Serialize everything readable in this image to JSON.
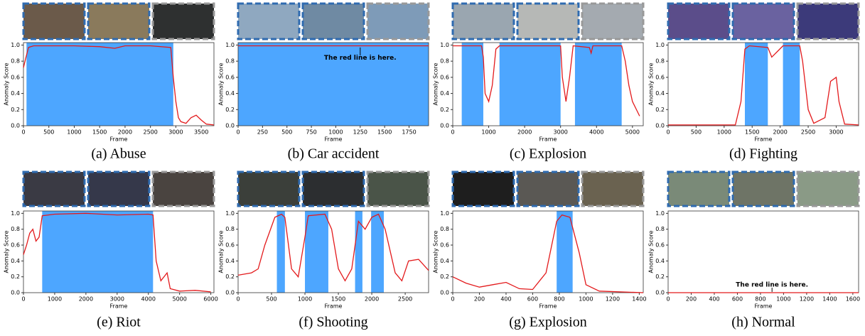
{
  "chart_data": [
    {
      "type": "line",
      "caption": "(a) Abuse",
      "xlabel": "Frame",
      "ylabel": "Anomaly Score",
      "color": "#e31a1c",
      "shade_color": "#4da6ff",
      "xlim": [
        0,
        3750
      ],
      "xticks": [
        0,
        500,
        1000,
        1500,
        2000,
        2500,
        3000,
        3500
      ],
      "ylim": [
        0,
        1.03
      ],
      "yticks": [
        {
          "value": 0,
          "label": "0.0"
        },
        0.2,
        0.4,
        0.6,
        0.8,
        {
          "value": 1,
          "label": "1.0"
        }
      ],
      "shaded": [
        [
          60,
          2950
        ]
      ],
      "x": [
        0,
        50,
        100,
        200,
        500,
        1000,
        1500,
        1800,
        2000,
        2500,
        2900,
        2950,
        3000,
        3050,
        3100,
        3200,
        3300,
        3400,
        3500,
        3600,
        3750
      ],
      "values": [
        0.72,
        0.85,
        0.97,
        0.99,
        0.99,
        0.99,
        0.98,
        0.96,
        0.99,
        0.99,
        0.97,
        0.6,
        0.3,
        0.1,
        0.05,
        0.03,
        0.1,
        0.13,
        0.07,
        0.02,
        0.01
      ]
    },
    {
      "type": "line",
      "caption": "(b) Car accident",
      "xlabel": "Frame",
      "ylabel": "Anomaly Score",
      "color": "#e31a1c",
      "shade_color": "#4da6ff",
      "xlim": [
        0,
        1950
      ],
      "xticks": [
        0,
        250,
        500,
        750,
        1000,
        1250,
        1500,
        1750
      ],
      "ylim": [
        0,
        1.03
      ],
      "yticks": [
        {
          "value": 0,
          "label": "0.0"
        },
        0.2,
        0.4,
        0.6,
        0.8,
        {
          "value": 1,
          "label": "1.0"
        }
      ],
      "shaded": [
        [
          0,
          1950
        ]
      ],
      "x": [
        0,
        500,
        1000,
        1500,
        1950
      ],
      "values": [
        0.99,
        0.99,
        0.99,
        0.99,
        0.99
      ],
      "annotation": {
        "text": "The red line is here.",
        "x": 1250
      }
    },
    {
      "type": "line",
      "caption": "(c) Explosion",
      "xlabel": "Frame",
      "ylabel": "Anomaly Score",
      "color": "#e31a1c",
      "shade_color": "#4da6ff",
      "xlim": [
        0,
        5300
      ],
      "xticks": [
        0,
        1000,
        2000,
        3000,
        4000,
        5000
      ],
      "ylim": [
        0,
        1.03
      ],
      "yticks": [
        {
          "value": 0,
          "label": "0.0"
        },
        0.2,
        0.4,
        0.6,
        0.8,
        {
          "value": 1,
          "label": "1.0"
        }
      ],
      "shaded": [
        [
          250,
          850
        ],
        [
          1300,
          3000
        ],
        [
          3400,
          4700
        ]
      ],
      "x": [
        0,
        800,
        850,
        900,
        1000,
        1100,
        1200,
        1300,
        3000,
        3050,
        3150,
        3250,
        3350,
        3800,
        3850,
        3900,
        4700,
        4800,
        4900,
        5000,
        5200
      ],
      "values": [
        0.99,
        0.99,
        0.85,
        0.4,
        0.3,
        0.5,
        0.95,
        0.99,
        0.99,
        0.6,
        0.3,
        0.6,
        0.99,
        0.97,
        0.9,
        0.99,
        0.99,
        0.8,
        0.5,
        0.3,
        0.12
      ]
    },
    {
      "type": "line",
      "caption": "(d) Fighting",
      "xlabel": "Frame",
      "ylabel": "Anomaly Score",
      "color": "#e31a1c",
      "shade_color": "#4da6ff",
      "xlim": [
        0,
        3400
      ],
      "xticks": [
        0,
        500,
        1000,
        1500,
        2000,
        2500,
        3000
      ],
      "ylim": [
        0,
        1.03
      ],
      "yticks": [
        {
          "value": 0,
          "label": "0.0"
        },
        0.2,
        0.4,
        0.6,
        0.8,
        {
          "value": 1,
          "label": "1.0"
        }
      ],
      "shaded": [
        [
          1370,
          1780
        ],
        [
          2050,
          2350
        ]
      ],
      "x": [
        0,
        1200,
        1300,
        1370,
        1450,
        1780,
        1850,
        1950,
        2050,
        2350,
        2400,
        2500,
        2600,
        2800,
        2900,
        3000,
        3050,
        3150,
        3400
      ],
      "values": [
        0.01,
        0.01,
        0.3,
        0.95,
        0.99,
        0.97,
        0.85,
        0.92,
        0.99,
        0.99,
        0.8,
        0.2,
        0.03,
        0.1,
        0.55,
        0.6,
        0.3,
        0.02,
        0.01
      ]
    },
    {
      "type": "line",
      "caption": "(e) Riot",
      "xlabel": "Frame",
      "ylabel": "Anomaly Score",
      "color": "#e31a1c",
      "shade_color": "#4da6ff",
      "xlim": [
        0,
        6100
      ],
      "xticks": [
        0,
        1000,
        2000,
        3000,
        4000,
        5000,
        6000
      ],
      "ylim": [
        0,
        1.03
      ],
      "yticks": [
        {
          "value": 0,
          "label": "0.0"
        },
        0.2,
        0.4,
        0.6,
        0.8,
        {
          "value": 1,
          "label": "1.0"
        }
      ],
      "shaded": [
        [
          600,
          4150
        ]
      ],
      "x": [
        0,
        100,
        200,
        300,
        400,
        500,
        600,
        1000,
        2000,
        3000,
        4000,
        4150,
        4250,
        4400,
        4600,
        4700,
        5000,
        5500,
        6000
      ],
      "values": [
        0.48,
        0.6,
        0.75,
        0.8,
        0.65,
        0.7,
        0.97,
        0.99,
        1.0,
        0.98,
        0.99,
        0.98,
        0.4,
        0.15,
        0.25,
        0.05,
        0.02,
        0.03,
        0.01
      ]
    },
    {
      "type": "line",
      "caption": "(f) Shooting",
      "xlabel": "Frame",
      "ylabel": "Anomaly Score",
      "color": "#e31a1c",
      "shade_color": "#4da6ff",
      "xlim": [
        0,
        2850
      ],
      "xticks": [
        0,
        500,
        1000,
        1500,
        2000,
        2500
      ],
      "ylim": [
        0,
        1.03
      ],
      "yticks": [
        {
          "value": 0,
          "label": "0.0"
        },
        0.2,
        0.4,
        0.6,
        0.8,
        {
          "value": 1,
          "label": "1.0"
        }
      ],
      "shaded": [
        [
          580,
          700
        ],
        [
          1000,
          1350
        ],
        [
          1750,
          1860
        ],
        [
          1990,
          2180
        ]
      ],
      "x": [
        0,
        200,
        300,
        400,
        550,
        650,
        700,
        800,
        900,
        1000,
        1050,
        1300,
        1400,
        1500,
        1600,
        1700,
        1800,
        1900,
        2000,
        2100,
        2200,
        2350,
        2450,
        2550,
        2700,
        2850
      ],
      "values": [
        0.22,
        0.25,
        0.3,
        0.6,
        0.95,
        0.99,
        0.95,
        0.3,
        0.2,
        0.7,
        0.97,
        0.99,
        0.8,
        0.3,
        0.15,
        0.3,
        0.9,
        0.8,
        0.95,
        0.99,
        0.8,
        0.25,
        0.15,
        0.4,
        0.42,
        0.28
      ]
    },
    {
      "type": "line",
      "caption": "(g) Explosion",
      "xlabel": "Frame",
      "ylabel": "Anomaly Score",
      "color": "#e31a1c",
      "shade_color": "#4da6ff",
      "xlim": [
        0,
        1430
      ],
      "xticks": [
        0,
        200,
        400,
        600,
        800,
        1000,
        1200,
        1400
      ],
      "ylim": [
        0,
        1.03
      ],
      "yticks": [
        {
          "value": 0,
          "label": "0.0"
        },
        0.2,
        0.4,
        0.6,
        0.8,
        {
          "value": 1,
          "label": "1.0"
        }
      ],
      "shaded": [
        [
          780,
          900
        ]
      ],
      "x": [
        0,
        100,
        200,
        300,
        400,
        500,
        600,
        700,
        780,
        820,
        880,
        950,
        1000,
        1100,
        1430
      ],
      "values": [
        0.2,
        0.12,
        0.07,
        0.1,
        0.13,
        0.05,
        0.04,
        0.25,
        0.9,
        0.98,
        0.95,
        0.5,
        0.1,
        0.02,
        0.0
      ]
    },
    {
      "type": "line",
      "caption": "(h) Normal",
      "xlabel": "Frame",
      "ylabel": "Anomaly Score",
      "color": "#e31a1c",
      "shade_color": "#4da6ff",
      "xlim": [
        0,
        1650
      ],
      "xticks": [
        0,
        200,
        400,
        600,
        800,
        1000,
        1200,
        1400,
        1600
      ],
      "ylim": [
        0,
        1.03
      ],
      "yticks": [
        {
          "value": 0,
          "label": "0.0"
        },
        0.2,
        0.4,
        0.6,
        0.8,
        {
          "value": 1,
          "label": "1.0"
        }
      ],
      "shaded": [],
      "x": [
        0,
        500,
        1000,
        1650
      ],
      "values": [
        0.0,
        0.0,
        0.0,
        0.0
      ],
      "annotation": {
        "text": "The red line is here.",
        "x": 900
      }
    }
  ]
}
